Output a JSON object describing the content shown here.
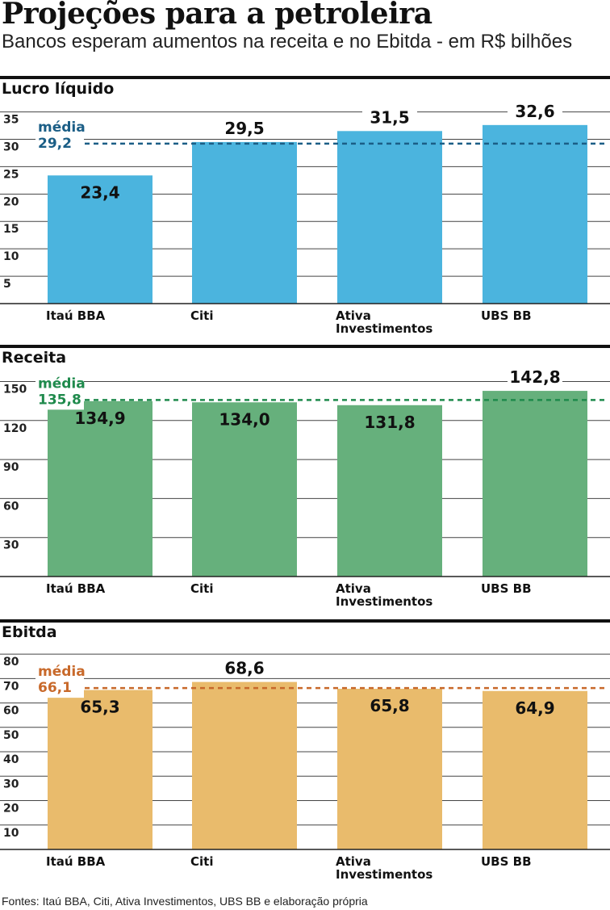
{
  "title": "Projeções para a petroleira",
  "subtitle": "Bancos esperam aumentos na receita e no Ebitda - em R$ bilhões",
  "footer": "Fontes: Itaú BBA, Citi, Ativa Investimentos, UBS BB e elaboração própria",
  "colors": {
    "lucro": "#4bb4de",
    "receita": "#66b07c",
    "ebitda": "#e9bb6c",
    "lucro_avg": "#1b5e86",
    "receita_avg": "#1f8a4c",
    "ebitda_avg": "#c8692a"
  },
  "chart_data": [
    {
      "type": "bar",
      "title": "Lucro líquido",
      "categories": [
        "Itaú BBA",
        "Citi",
        "Ativa Investimentos",
        "UBS BB"
      ],
      "values": [
        23.4,
        29.5,
        31.5,
        32.6
      ],
      "value_labels": [
        "23,4",
        "29,5",
        "31,5",
        "32,6"
      ],
      "yticks": [
        5,
        10,
        15,
        20,
        25,
        30,
        35
      ],
      "ylim": [
        0,
        37
      ],
      "average": {
        "label": "média",
        "value": 29.2,
        "value_label": "29,2"
      },
      "grid": true
    },
    {
      "type": "bar",
      "title": "Receita",
      "categories": [
        "Itaú BBA",
        "Citi",
        "Ativa Investimentos",
        "UBS BB"
      ],
      "values": [
        134.9,
        134.0,
        131.8,
        142.8
      ],
      "value_labels": [
        "134,9",
        "134,0",
        "131,8",
        "142,8"
      ],
      "yticks": [
        30,
        60,
        90,
        120,
        150
      ],
      "ylim": [
        0,
        159
      ],
      "average": {
        "label": "média",
        "value": 135.8,
        "value_label": "135,8"
      },
      "grid": true
    },
    {
      "type": "bar",
      "title": "Ebitda",
      "categories": [
        "Itaú BBA",
        "Citi",
        "Ativa Investimentos",
        "UBS BB"
      ],
      "values": [
        65.3,
        68.6,
        65.8,
        64.9
      ],
      "value_labels": [
        "65,3",
        "68,6",
        "65,8",
        "64,9"
      ],
      "yticks": [
        10,
        20,
        30,
        40,
        50,
        60,
        70,
        80
      ],
      "ylim": [
        0,
        84
      ],
      "average": {
        "label": "média",
        "value": 66.1,
        "value_label": "66,1"
      },
      "grid": true
    }
  ]
}
